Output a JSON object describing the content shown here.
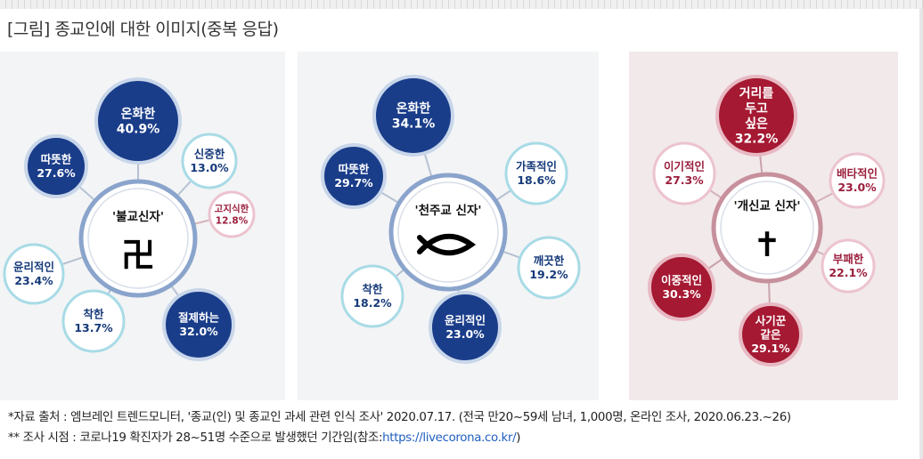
{
  "title": "[그림] 종교인에 대한 이미지(중복 응답)",
  "colors": {
    "dark_blue": "#1a3d8a",
    "light_blue_border": "#a8dbe6",
    "center_ring": "#8aa4cc",
    "dark_red": "#a51932",
    "light_red_border": "#ecc3cf",
    "center_ring_red": "#c7909d",
    "light_panel_bg": "#f3f4f6",
    "red_panel_bg": "#f2e9ea"
  },
  "diagrams": [
    {
      "center_label": "'불교신자'",
      "center_icon": "卍",
      "icon_name": "swastika-icon",
      "items": [
        {
          "label": "온화한",
          "value": "40.9%"
        },
        {
          "label": "따뜻한",
          "value": "27.6%"
        },
        {
          "label": "신중한",
          "value": "13.0%"
        },
        {
          "label": "고지식한",
          "value": "12.8%"
        },
        {
          "label": "윤리적인",
          "value": "23.4%"
        },
        {
          "label": "착한",
          "value": "13.7%"
        },
        {
          "label": "절제하는",
          "value": "32.0%"
        }
      ]
    },
    {
      "center_label": "'천주교 신자'",
      "center_icon": "ichthys",
      "icon_name": "fish-icon",
      "items": [
        {
          "label": "온화한",
          "value": "34.1%"
        },
        {
          "label": "따뜻한",
          "value": "29.7%"
        },
        {
          "label": "가족적인",
          "value": "18.6%"
        },
        {
          "label": "깨끗한",
          "value": "19.2%"
        },
        {
          "label": "착한",
          "value": "18.2%"
        },
        {
          "label": "윤리적인",
          "value": "23.0%"
        }
      ]
    },
    {
      "center_label": "'개신교 신자'",
      "center_icon": "✝",
      "icon_name": "cross-icon",
      "items": [
        {
          "label": "거리를 두고 싶은",
          "value": "32.2%"
        },
        {
          "label": "이기적인",
          "value": "27.3%"
        },
        {
          "label": "배타적인",
          "value": "23.0%"
        },
        {
          "label": "이중적인",
          "value": "30.3%"
        },
        {
          "label": "부패한",
          "value": "22.1%"
        },
        {
          "label": "사기꾼 같은",
          "value": "29.1%"
        }
      ]
    }
  ],
  "notes": {
    "source": "*자료 출처 :  엠브레인 트렌드모니터, '종교(인) 및 종교인 과세 관련 인식 조사' 2020.07.17. (전국 만20~59세 남녀, 1,000명, 온라인 조사, 2020.06.23.~26)",
    "period_prefix": "** 조사 시점 : 코로나19 확진자가 28~51명 수준으로 발생했던 기간임(참조:",
    "link": "https://livecorona.co.kr/",
    "period_suffix": ")"
  }
}
